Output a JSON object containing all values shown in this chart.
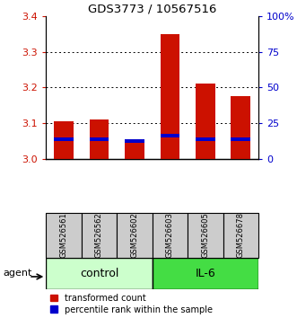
{
  "title": "GDS3773 / 10567516",
  "samples": [
    "GSM526561",
    "GSM526562",
    "GSM526602",
    "GSM526603",
    "GSM526605",
    "GSM526678"
  ],
  "red_values": [
    3.105,
    3.11,
    3.055,
    3.35,
    3.21,
    3.175
  ],
  "blue_values": [
    3.055,
    3.055,
    3.05,
    3.065,
    3.055,
    3.055
  ],
  "y_min": 3.0,
  "y_max": 3.4,
  "y_ticks": [
    3.0,
    3.1,
    3.2,
    3.3,
    3.4
  ],
  "right_y_ticks": [
    0,
    25,
    50,
    75,
    100
  ],
  "right_y_labels": [
    "0",
    "25",
    "50",
    "75",
    "100%"
  ],
  "red_color": "#cc1100",
  "blue_color": "#0000cc",
  "control_color": "#ccffcc",
  "il6_color": "#44dd44",
  "sample_bg_color": "#cccccc",
  "legend_items": [
    "transformed count",
    "percentile rank within the sample"
  ],
  "agent_label": "agent"
}
